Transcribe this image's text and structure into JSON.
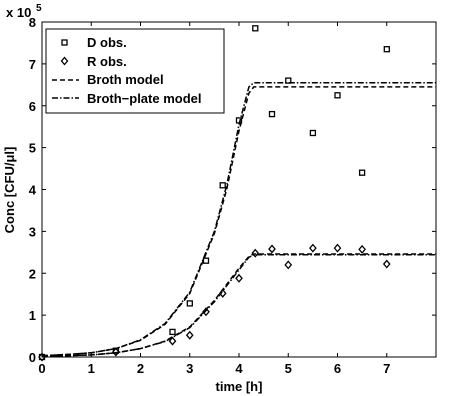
{
  "chart_data": {
    "type": "scatter",
    "xlabel": "time [h]",
    "ylabel": "Conc [CFU/μl]",
    "y_multiplier_label": "x 10",
    "y_multiplier_exponent": "5",
    "xlim": [
      0,
      8
    ],
    "ylim": [
      0,
      8
    ],
    "x_ticks": [
      "0",
      "1",
      "2",
      "3",
      "4",
      "5",
      "6",
      "7"
    ],
    "y_ticks": [
      "0",
      "1",
      "2",
      "3",
      "4",
      "5",
      "6",
      "7",
      "8"
    ],
    "grid": false,
    "legend_position": "top-left",
    "legend": [
      "D obs.",
      "R obs.",
      "Broth model",
      "Broth−plate model"
    ],
    "series": [
      {
        "name": "D obs.",
        "kind": "points",
        "marker": "square",
        "x": [
          0,
          1.5,
          2.65,
          3.0,
          3.33,
          3.67,
          4.0,
          4.33,
          4.67,
          5.0,
          5.5,
          6.0,
          6.5,
          7.0
        ],
        "y": [
          0.0,
          0.15,
          0.6,
          1.28,
          2.3,
          4.1,
          5.65,
          7.85,
          5.8,
          6.6,
          5.35,
          6.25,
          4.4,
          7.35
        ]
      },
      {
        "name": "R obs.",
        "kind": "points",
        "marker": "diamond",
        "x": [
          0,
          1.5,
          2.65,
          3.0,
          3.33,
          3.67,
          4.0,
          4.33,
          4.67,
          5.0,
          5.5,
          6.0,
          6.5,
          7.0
        ],
        "y": [
          0.0,
          0.12,
          0.38,
          0.52,
          1.08,
          1.52,
          1.88,
          2.48,
          2.58,
          2.2,
          2.6,
          2.6,
          2.57,
          2.22
        ]
      },
      {
        "name": "Broth model",
        "kind": "line",
        "dash": "dashed",
        "x": [
          0,
          0.5,
          1.0,
          1.5,
          2.0,
          2.5,
          3.0,
          3.5,
          3.75,
          4.0,
          4.2,
          4.3,
          4.5,
          5.0,
          6.0,
          7.0,
          8.0
        ],
        "y": [
          0.03,
          0.06,
          0.1,
          0.2,
          0.4,
          0.78,
          1.52,
          2.95,
          4.0,
          5.4,
          6.3,
          6.45,
          6.45,
          6.45,
          6.45,
          6.45,
          6.45
        ]
      },
      {
        "name": "Broth−plate model",
        "kind": "line",
        "dash": "dashdot",
        "x": [
          0,
          0.5,
          1.0,
          1.5,
          2.0,
          2.5,
          3.0,
          3.5,
          3.75,
          4.0,
          4.2,
          4.3,
          4.5,
          5.0,
          6.0,
          7.0,
          8.0
        ],
        "y": [
          0.03,
          0.06,
          0.1,
          0.2,
          0.41,
          0.8,
          1.55,
          3.0,
          4.1,
          5.55,
          6.45,
          6.55,
          6.55,
          6.55,
          6.55,
          6.55,
          6.55
        ]
      },
      {
        "name": "",
        "kind": "line",
        "dash": "dashed",
        "x": [
          0,
          0.5,
          1.0,
          1.5,
          2.0,
          2.5,
          3.0,
          3.5,
          4.0,
          4.2,
          4.3,
          4.5,
          5.0,
          6.0,
          7.0,
          8.0
        ],
        "y": [
          0.02,
          0.03,
          0.05,
          0.1,
          0.2,
          0.38,
          0.72,
          1.35,
          2.12,
          2.4,
          2.46,
          2.46,
          2.46,
          2.46,
          2.46,
          2.46
        ]
      },
      {
        "name": "",
        "kind": "line",
        "dash": "dashdot",
        "x": [
          0,
          0.5,
          1.0,
          1.5,
          2.0,
          2.5,
          3.0,
          3.5,
          4.0,
          4.2,
          4.3,
          4.5,
          5.0,
          6.0,
          7.0,
          8.0
        ],
        "y": [
          0.02,
          0.03,
          0.05,
          0.1,
          0.2,
          0.37,
          0.7,
          1.32,
          2.08,
          2.38,
          2.44,
          2.44,
          2.44,
          2.44,
          2.44,
          2.44
        ]
      }
    ]
  }
}
